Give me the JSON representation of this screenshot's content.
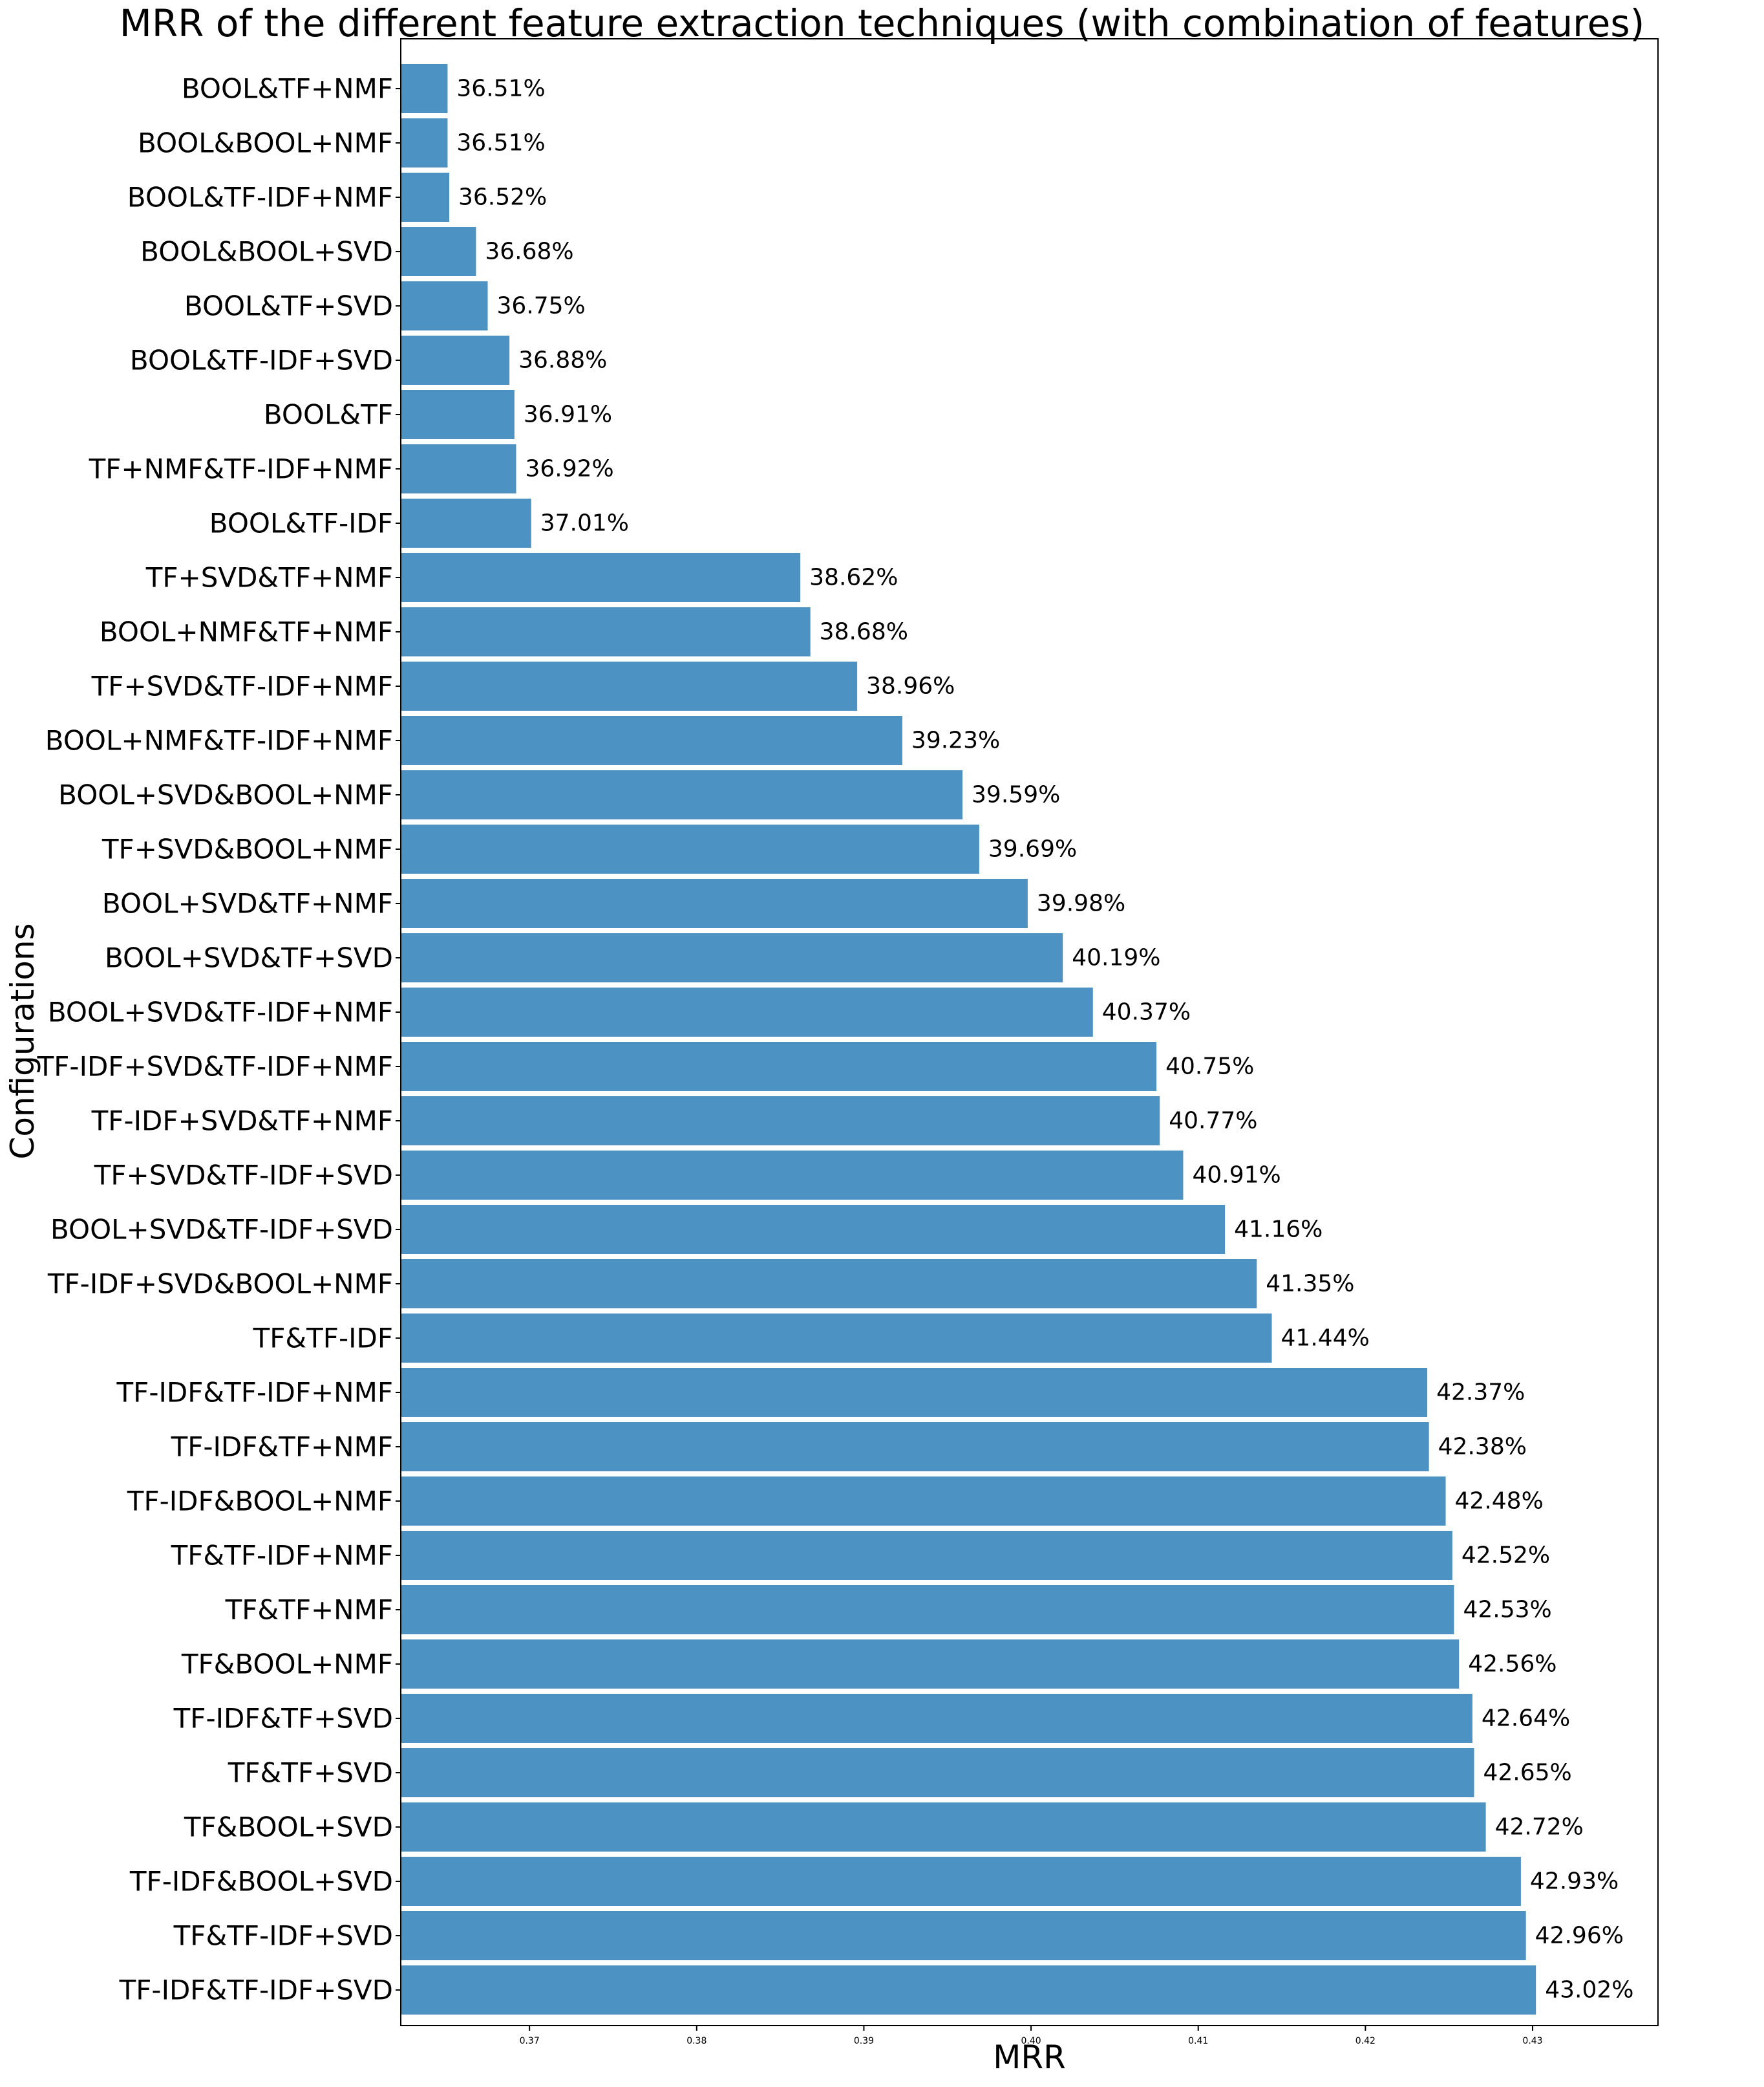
{
  "chart_data": {
    "type": "bar",
    "orientation": "horizontal",
    "title": "MRR of the different feature extraction techniques (with combination of features)",
    "xlabel": "MRR",
    "ylabel": "Configurations",
    "xlim": [
      0.3623,
      0.4375
    ],
    "xticks": [
      "0.37",
      "0.38",
      "0.39",
      "0.40",
      "0.41",
      "0.42",
      "0.43"
    ],
    "xtick_values": [
      0.37,
      0.38,
      0.39,
      0.4,
      0.41,
      0.42,
      0.43
    ],
    "grid": false,
    "bar_color": "#4c93c3",
    "categories": [
      "BOOL&TF+NMF",
      "BOOL&BOOL+NMF",
      "BOOL&TF-IDF+NMF",
      "BOOL&BOOL+SVD",
      "BOOL&TF+SVD",
      "BOOL&TF-IDF+SVD",
      "BOOL&TF",
      "TF+NMF&TF-IDF+NMF",
      "BOOL&TF-IDF",
      "TF+SVD&TF+NMF",
      "BOOL+NMF&TF+NMF",
      "TF+SVD&TF-IDF+NMF",
      "BOOL+NMF&TF-IDF+NMF",
      "BOOL+SVD&BOOL+NMF",
      "TF+SVD&BOOL+NMF",
      "BOOL+SVD&TF+NMF",
      "BOOL+SVD&TF+SVD",
      "BOOL+SVD&TF-IDF+NMF",
      "TF-IDF+SVD&TF-IDF+NMF",
      "TF-IDF+SVD&TF+NMF",
      "TF+SVD&TF-IDF+SVD",
      "BOOL+SVD&TF-IDF+SVD",
      "TF-IDF+SVD&BOOL+NMF",
      "TF&TF-IDF",
      "TF-IDF&TF-IDF+NMF",
      "TF-IDF&TF+NMF",
      "TF-IDF&BOOL+NMF",
      "TF&TF-IDF+NMF",
      "TF&TF+NMF",
      "TF&BOOL+NMF",
      "TF-IDF&TF+SVD",
      "TF&TF+SVD",
      "TF&BOOL+SVD",
      "TF-IDF&BOOL+SVD",
      "TF&TF-IDF+SVD",
      "TF-IDF&TF-IDF+SVD"
    ],
    "values": [
      0.3651,
      0.3651,
      0.3652,
      0.3668,
      0.3675,
      0.3688,
      0.3691,
      0.3692,
      0.3701,
      0.3862,
      0.3868,
      0.3896,
      0.3923,
      0.3959,
      0.3969,
      0.3998,
      0.4019,
      0.4037,
      0.4075,
      0.4077,
      0.4091,
      0.4116,
      0.4135,
      0.4144,
      0.4237,
      0.4238,
      0.4248,
      0.4252,
      0.4253,
      0.4256,
      0.4264,
      0.4265,
      0.4272,
      0.4293,
      0.4296,
      0.4302
    ],
    "data_labels": [
      "36.51%",
      "36.51%",
      "36.52%",
      "36.68%",
      "36.75%",
      "36.88%",
      "36.91%",
      "36.92%",
      "37.01%",
      "38.62%",
      "38.68%",
      "38.96%",
      "39.23%",
      "39.59%",
      "39.69%",
      "39.98%",
      "40.19%",
      "40.37%",
      "40.75%",
      "40.77%",
      "40.91%",
      "41.16%",
      "41.35%",
      "41.44%",
      "42.37%",
      "42.38%",
      "42.48%",
      "42.52%",
      "42.53%",
      "42.56%",
      "42.64%",
      "42.65%",
      "42.72%",
      "42.93%",
      "42.96%",
      "43.02%"
    ]
  }
}
